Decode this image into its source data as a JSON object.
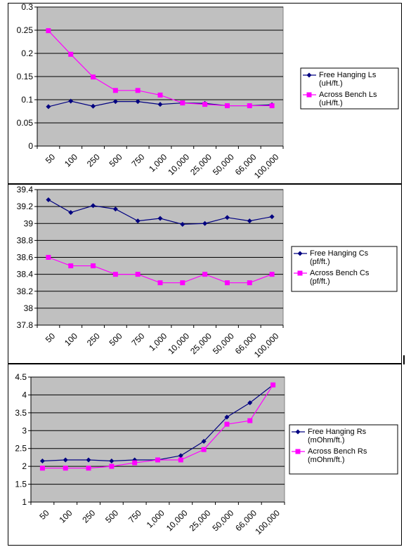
{
  "chart_data": [
    {
      "type": "line",
      "categories": [
        "50",
        "100",
        "250",
        "500",
        "750",
        "1,000",
        "10,000",
        "25,000",
        "50,000",
        "66,000",
        "100,000"
      ],
      "ylim": [
        0,
        0.3
      ],
      "yticks": [
        "0",
        "0.05",
        "0.1",
        "0.15",
        "0.2",
        "0.25",
        "0.3"
      ],
      "grid": true,
      "legend": "right",
      "plot_background": "#c0c0c0",
      "series": [
        {
          "name": "Free Hanging Ls (uH/ft.)",
          "legend_lines": [
            "Free Hanging Ls",
            "(uH/ft.)"
          ],
          "color": "#000080",
          "marker": "diamond",
          "values": [
            0.085,
            0.097,
            0.086,
            0.096,
            0.096,
            0.09,
            0.093,
            0.092,
            0.087,
            0.087,
            0.089
          ]
        },
        {
          "name": "Across Bench Ls (uH/ft.)",
          "legend_lines": [
            "Across Bench Ls",
            "(uH/ft.)"
          ],
          "color": "#ff00ff",
          "marker": "square",
          "values": [
            0.249,
            0.198,
            0.149,
            0.12,
            0.12,
            0.11,
            0.093,
            0.09,
            0.087,
            0.087,
            0.087
          ]
        }
      ]
    },
    {
      "type": "line",
      "categories": [
        "50",
        "100",
        "250",
        "500",
        "750",
        "1,000",
        "10,000",
        "25,000",
        "50,000",
        "66,000",
        "100,000"
      ],
      "ylim": [
        37.8,
        39.4
      ],
      "yticks": [
        "37.8",
        "38",
        "38.2",
        "38.4",
        "38.6",
        "38.8",
        "39",
        "39.2",
        "39.4"
      ],
      "grid": true,
      "legend": "right",
      "plot_background": "#c0c0c0",
      "series": [
        {
          "name": "Free Hanging Cs (pf/ft.)",
          "legend_lines": [
            "Free Hanging Cs",
            "(pf/ft.)"
          ],
          "color": "#000080",
          "marker": "diamond",
          "values": [
            39.28,
            39.13,
            39.21,
            39.17,
            39.03,
            39.06,
            38.99,
            39.0,
            39.07,
            39.03,
            39.08
          ]
        },
        {
          "name": "Across Bench Cs (pf/ft.)",
          "legend_lines": [
            "Across Bench Cs",
            "(pf/ft.)"
          ],
          "color": "#ff00ff",
          "marker": "square",
          "values": [
            38.6,
            38.5,
            38.5,
            38.4,
            38.4,
            38.3,
            38.3,
            38.4,
            38.3,
            38.3,
            38.4
          ]
        }
      ]
    },
    {
      "type": "line",
      "categories": [
        "50",
        "100",
        "250",
        "500",
        "750",
        "1,000",
        "10,000",
        "25,000",
        "50,000",
        "66,000",
        "100,000"
      ],
      "ylim": [
        1,
        4.5
      ],
      "yticks": [
        "1",
        "1.5",
        "2",
        "2.5",
        "3",
        "3.5",
        "4",
        "4.5"
      ],
      "grid": true,
      "legend": "right",
      "plot_background": "#c0c0c0",
      "series": [
        {
          "name": "Free Hanging Rs (mOhm/ft.)",
          "legend_lines": [
            "Free Hanging Rs",
            "(mOhm/ft.)"
          ],
          "color": "#000080",
          "marker": "diamond",
          "values": [
            2.15,
            2.18,
            2.18,
            2.15,
            2.18,
            2.18,
            2.3,
            2.7,
            3.38,
            3.78,
            4.28
          ]
        },
        {
          "name": "Across Bench Rs (mOhm/ft.)",
          "legend_lines": [
            "Across Bench Rs",
            "(mOhm/ft.)"
          ],
          "color": "#ff00ff",
          "marker": "square",
          "values": [
            1.95,
            1.95,
            1.95,
            2.0,
            2.1,
            2.18,
            2.18,
            2.47,
            3.18,
            3.28,
            4.28
          ]
        }
      ]
    }
  ]
}
